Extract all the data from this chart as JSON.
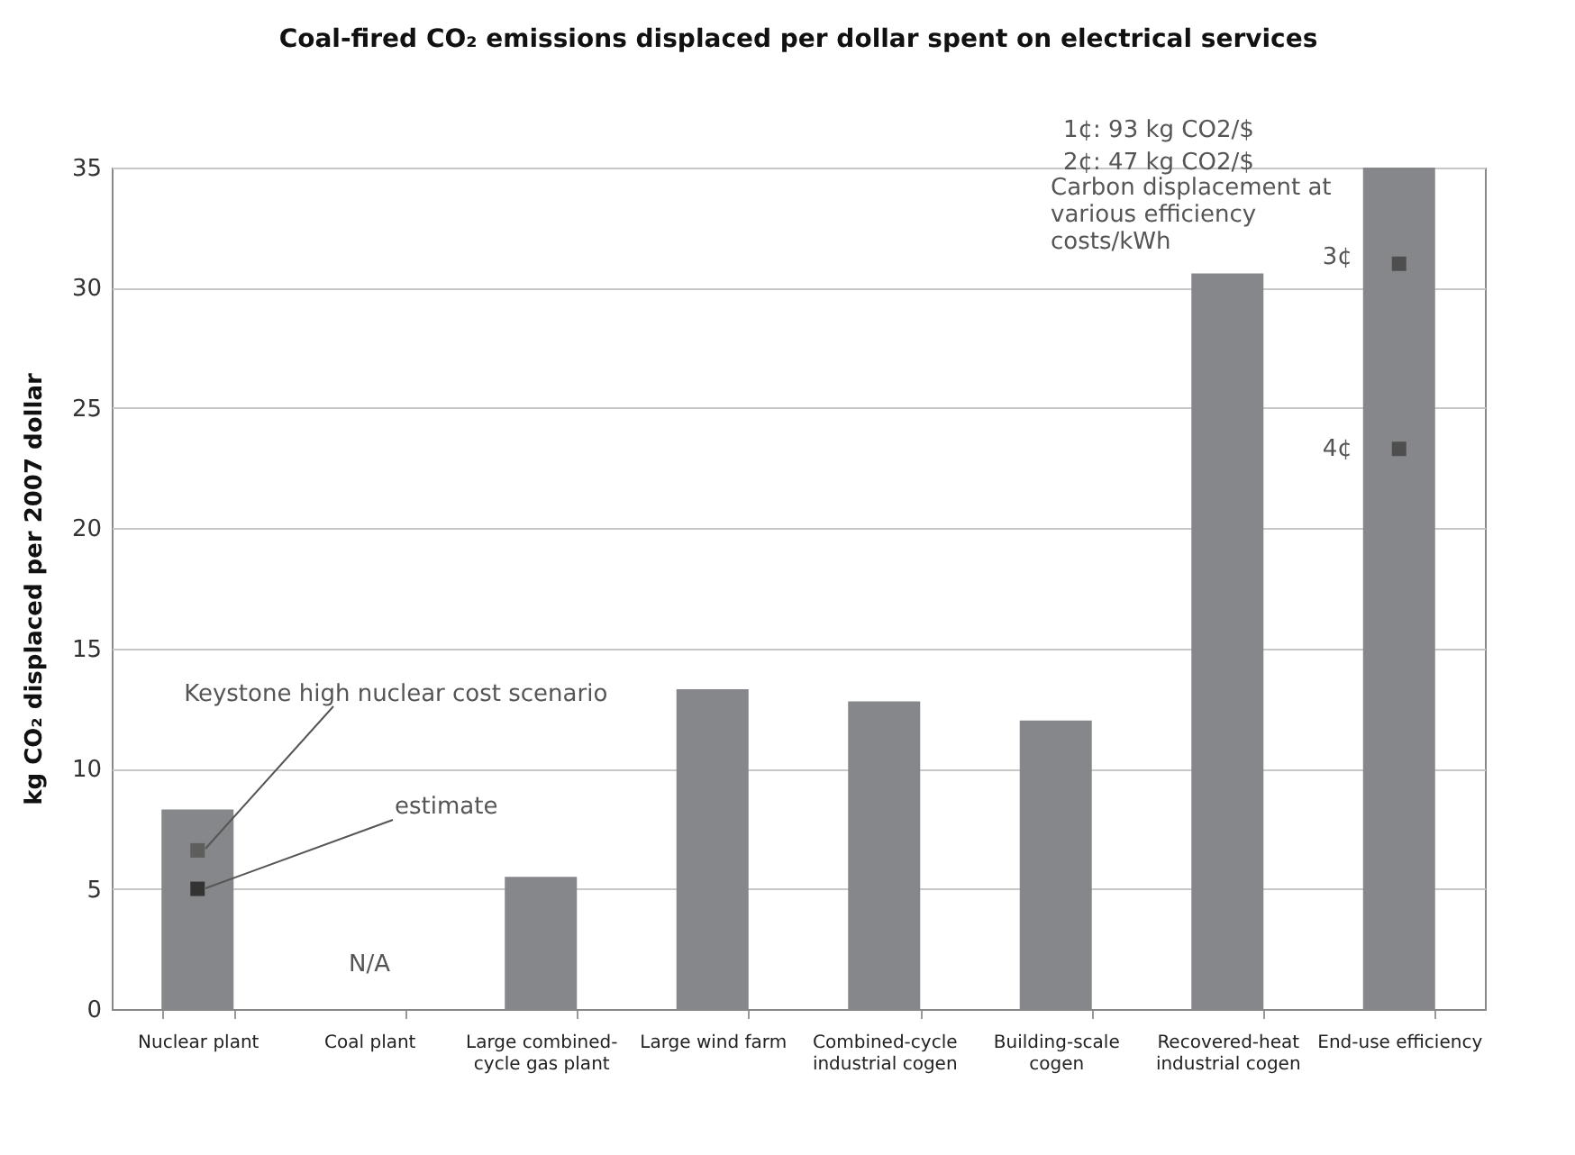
{
  "chart_data": {
    "type": "bar",
    "title": "Coal-fired CO₂ emissions displaced per dollar spent on electrical services",
    "ylabel": "kg CO₂ displaced per 2007 dollar",
    "categories": [
      "Nuclear plant",
      "Coal plant",
      "Large combined-cycle gas plant",
      "Large wind farm",
      "Combined-cycle industrial cogen",
      "Building-scale cogen",
      "Recovered-heat industrial cogen",
      "End-use efficiency"
    ],
    "series": [
      {
        "color": "#86878b",
        "values": [
          8.3,
          null,
          5.5,
          13.3,
          12.8,
          12.0,
          30.6,
          35
        ]
      },
      {
        "type": "scatter",
        "color": "#5e5e5e",
        "marker": "square",
        "x": [
          "Nuclear plant"
        ],
        "values": [
          6.6
        ]
      },
      {
        "type": "scatter",
        "color": "#333333",
        "marker": "square",
        "x": [
          "Nuclear plant"
        ],
        "values": [
          5.0
        ]
      },
      {
        "type": "scatter",
        "color": "#4e4e4e",
        "marker": "square",
        "x": [
          "End-use efficiency",
          "End-use efficiency"
        ],
        "values": [
          31.0,
          23.3
        ]
      }
    ],
    "ylim": [
      0,
      35
    ],
    "yticks": [
      0,
      5,
      10,
      15,
      20,
      25,
      30,
      35
    ],
    "grid": "y",
    "annotations": [
      {
        "text": "Keystone high nuclear cost scenario",
        "x": "Nuclear plant",
        "y": 6.6
      },
      {
        "text": "estimate",
        "x": "Nuclear plant",
        "y": 5.0
      },
      "N/A",
      {
        "text": "3¢",
        "x": "End-use efficiency",
        "y": 31.0
      },
      {
        "text": "4¢",
        "x": "End-use efficiency",
        "y": 23.3
      },
      "Carbon displacement at various efficiency costs/kWh",
      "1¢: 93 kg CO2/$",
      "2¢: 47 kg CO2/$"
    ]
  }
}
